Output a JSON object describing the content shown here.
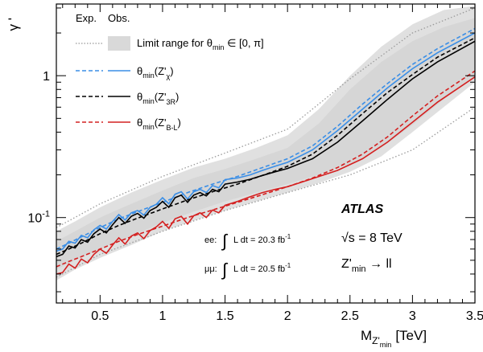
{
  "chart_data": {
    "type": "line",
    "xlabel_main": "M",
    "xlabel_sub": "Z'",
    "xlabel_subsub": "min",
    "xlabel_unit": "[TeV]",
    "ylabel": "γ '",
    "xlim": [
      0.15,
      3.5
    ],
    "ylim": [
      0.025,
      3.2
    ],
    "yscale": "log",
    "x_ticks": [
      "0.5",
      "1",
      "1.5",
      "2",
      "2.5",
      "3",
      "3.5"
    ],
    "x_tick_values": [
      0.5,
      1,
      1.5,
      2,
      2.5,
      3,
      3.5
    ],
    "y_tick_labels": [
      {
        "base": "10",
        "exp": "-1",
        "value": 0.1
      },
      {
        "base": "1",
        "exp": "",
        "value": 1
      }
    ],
    "legend": {
      "header_exp": "Exp.",
      "header_obs": "Obs.",
      "band_prefix": "Limit range for θ",
      "band_sub": "min",
      "band_suffix": " ∈  [0, π]",
      "entries": [
        {
          "prefix": "θ",
          "sub": "min",
          "mid": "(Z'",
          "sub2": "χ",
          "end": ")",
          "color": "#3a8ee6"
        },
        {
          "prefix": "θ",
          "sub": "min",
          "mid": "(Z'",
          "sub2": "3R",
          "end": ")",
          "color": "#000000"
        },
        {
          "prefix": "θ",
          "sub": "min",
          "mid": "(Z'",
          "sub2": "B-L",
          "end": ")",
          "color": "#d42020"
        }
      ]
    },
    "annotations": {
      "experiment": "ATLAS",
      "energy": "√s = 8 TeV",
      "process_main": "Z'",
      "process_sub": "min",
      "process_tail": " → ll",
      "lumi_ee_prefix": "ee:",
      "lumi_ee_text": "L dt = 20.3 fb",
      "lumi_ee_exp": "-1",
      "lumi_mm_prefix": "μμ:",
      "lumi_mm_text": "L dt = 20.5 fb",
      "lumi_mm_exp": "-1"
    },
    "band_expected": {
      "x": [
        0.15,
        0.3,
        0.5,
        0.75,
        1.0,
        1.25,
        1.5,
        1.75,
        2.0,
        2.25,
        2.5,
        2.75,
        3.0,
        3.25,
        3.5
      ],
      "low": [
        0.043,
        0.05,
        0.06,
        0.074,
        0.092,
        0.11,
        0.13,
        0.15,
        0.172,
        0.2,
        0.24,
        0.31,
        0.45,
        0.68,
        1.0
      ],
      "high": [
        0.068,
        0.08,
        0.1,
        0.125,
        0.155,
        0.19,
        0.22,
        0.26,
        0.31,
        0.46,
        0.8,
        1.25,
        1.75,
        2.2,
        2.55
      ]
    },
    "band_observed": {
      "x": [
        0.15,
        0.3,
        0.5,
        0.75,
        1.0,
        1.25,
        1.5,
        1.75,
        2.0,
        2.25,
        2.5,
        2.75,
        3.0,
        3.25,
        3.5
      ],
      "low": [
        0.036,
        0.043,
        0.052,
        0.064,
        0.08,
        0.095,
        0.112,
        0.13,
        0.15,
        0.175,
        0.21,
        0.27,
        0.4,
        0.6,
        0.9
      ],
      "high": [
        0.08,
        0.094,
        0.118,
        0.15,
        0.185,
        0.225,
        0.26,
        0.31,
        0.38,
        0.58,
        1.0,
        1.6,
        2.3,
        2.9,
        3.1
      ]
    },
    "series": [
      {
        "name": "θmin(Z'χ) expected",
        "color": "#3a8ee6",
        "dash": true,
        "x": [
          0.15,
          0.25,
          0.35,
          0.5,
          0.65,
          0.8,
          1.0,
          1.2,
          1.4,
          1.6,
          1.8,
          2.0,
          2.2,
          2.4,
          2.6,
          2.8,
          3.0,
          3.2,
          3.5
        ],
        "y": [
          0.06,
          0.066,
          0.073,
          0.085,
          0.098,
          0.11,
          0.128,
          0.15,
          0.172,
          0.195,
          0.225,
          0.26,
          0.32,
          0.44,
          0.63,
          0.88,
          1.2,
          1.55,
          2.15
        ]
      },
      {
        "name": "θmin(Z'χ) observed",
        "color": "#3a8ee6",
        "dash": false,
        "x": [
          0.15,
          0.2,
          0.25,
          0.3,
          0.35,
          0.4,
          0.45,
          0.5,
          0.55,
          0.6,
          0.65,
          0.7,
          0.75,
          0.8,
          0.85,
          0.9,
          0.95,
          1.0,
          1.05,
          1.1,
          1.15,
          1.2,
          1.25,
          1.3,
          1.35,
          1.4,
          1.45,
          1.5,
          1.6,
          1.7,
          1.8,
          1.9,
          2.0,
          2.2,
          2.4,
          2.6,
          2.8,
          3.0,
          3.2,
          3.5
        ],
        "y": [
          0.058,
          0.06,
          0.068,
          0.066,
          0.075,
          0.072,
          0.082,
          0.088,
          0.083,
          0.094,
          0.105,
          0.096,
          0.108,
          0.112,
          0.104,
          0.118,
          0.124,
          0.138,
          0.125,
          0.146,
          0.152,
          0.135,
          0.152,
          0.158,
          0.15,
          0.168,
          0.162,
          0.185,
          0.19,
          0.2,
          0.215,
          0.23,
          0.245,
          0.3,
          0.41,
          0.58,
          0.82,
          1.12,
          1.45,
          2.0
        ]
      },
      {
        "name": "θmin(Z'3R) expected",
        "color": "#000000",
        "dash": true,
        "x": [
          0.15,
          0.25,
          0.35,
          0.5,
          0.65,
          0.8,
          1.0,
          1.2,
          1.4,
          1.6,
          1.8,
          2.0,
          2.2,
          2.4,
          2.6,
          2.8,
          3.0,
          3.2,
          3.5
        ],
        "y": [
          0.055,
          0.06,
          0.066,
          0.077,
          0.088,
          0.099,
          0.115,
          0.133,
          0.152,
          0.172,
          0.198,
          0.23,
          0.28,
          0.38,
          0.54,
          0.76,
          1.02,
          1.35,
          1.85
        ]
      },
      {
        "name": "θmin(Z'3R) observed",
        "color": "#000000",
        "dash": false,
        "x": [
          0.15,
          0.2,
          0.25,
          0.3,
          0.35,
          0.4,
          0.45,
          0.5,
          0.55,
          0.6,
          0.65,
          0.7,
          0.75,
          0.8,
          0.85,
          0.9,
          0.95,
          1.0,
          1.05,
          1.1,
          1.15,
          1.2,
          1.25,
          1.3,
          1.35,
          1.4,
          1.45,
          1.5,
          1.6,
          1.7,
          1.8,
          1.9,
          2.0,
          2.2,
          2.4,
          2.6,
          2.8,
          3.0,
          3.2,
          3.5
        ],
        "y": [
          0.053,
          0.055,
          0.063,
          0.061,
          0.07,
          0.067,
          0.077,
          0.083,
          0.078,
          0.089,
          0.1,
          0.091,
          0.102,
          0.107,
          0.099,
          0.112,
          0.118,
          0.13,
          0.118,
          0.138,
          0.144,
          0.128,
          0.144,
          0.15,
          0.142,
          0.158,
          0.152,
          0.172,
          0.178,
          0.186,
          0.198,
          0.21,
          0.222,
          0.26,
          0.34,
          0.48,
          0.68,
          0.95,
          1.25,
          1.75
        ]
      },
      {
        "name": "θmin(Z'B-L) expected",
        "color": "#d42020",
        "dash": true,
        "x": [
          0.15,
          0.25,
          0.35,
          0.5,
          0.65,
          0.8,
          1.0,
          1.2,
          1.4,
          1.6,
          1.8,
          2.0,
          2.2,
          2.4,
          2.6,
          2.8,
          3.0,
          3.2,
          3.5
        ],
        "y": [
          0.045,
          0.049,
          0.053,
          0.06,
          0.068,
          0.076,
          0.087,
          0.1,
          0.113,
          0.128,
          0.145,
          0.165,
          0.19,
          0.225,
          0.28,
          0.37,
          0.52,
          0.72,
          1.08
        ]
      },
      {
        "name": "θmin(Z'B-L) observed",
        "color": "#d42020",
        "dash": false,
        "x": [
          0.15,
          0.2,
          0.25,
          0.3,
          0.35,
          0.4,
          0.45,
          0.5,
          0.55,
          0.6,
          0.65,
          0.7,
          0.75,
          0.8,
          0.85,
          0.9,
          0.95,
          1.0,
          1.05,
          1.1,
          1.15,
          1.2,
          1.25,
          1.3,
          1.35,
          1.4,
          1.45,
          1.5,
          1.6,
          1.7,
          1.8,
          1.9,
          2.0,
          2.2,
          2.4,
          2.6,
          2.8,
          3.0,
          3.2,
          3.5
        ],
        "y": [
          0.04,
          0.041,
          0.047,
          0.044,
          0.051,
          0.048,
          0.055,
          0.06,
          0.056,
          0.064,
          0.072,
          0.065,
          0.074,
          0.078,
          0.071,
          0.081,
          0.086,
          0.094,
          0.084,
          0.098,
          0.102,
          0.09,
          0.103,
          0.108,
          0.1,
          0.113,
          0.108,
          0.122,
          0.13,
          0.14,
          0.15,
          0.158,
          0.165,
          0.188,
          0.215,
          0.26,
          0.34,
          0.47,
          0.65,
          0.98
        ]
      }
    ],
    "limit_range_exp": {
      "x": [
        0.15,
        0.5,
        1.0,
        1.5,
        2.0,
        2.5,
        3.0,
        3.5
      ],
      "low": [
        0.038,
        0.055,
        0.08,
        0.112,
        0.15,
        0.2,
        0.3,
        0.6
      ],
      "high": [
        0.085,
        0.125,
        0.195,
        0.285,
        0.42,
        0.95,
        2.0,
        3.0
      ]
    }
  }
}
